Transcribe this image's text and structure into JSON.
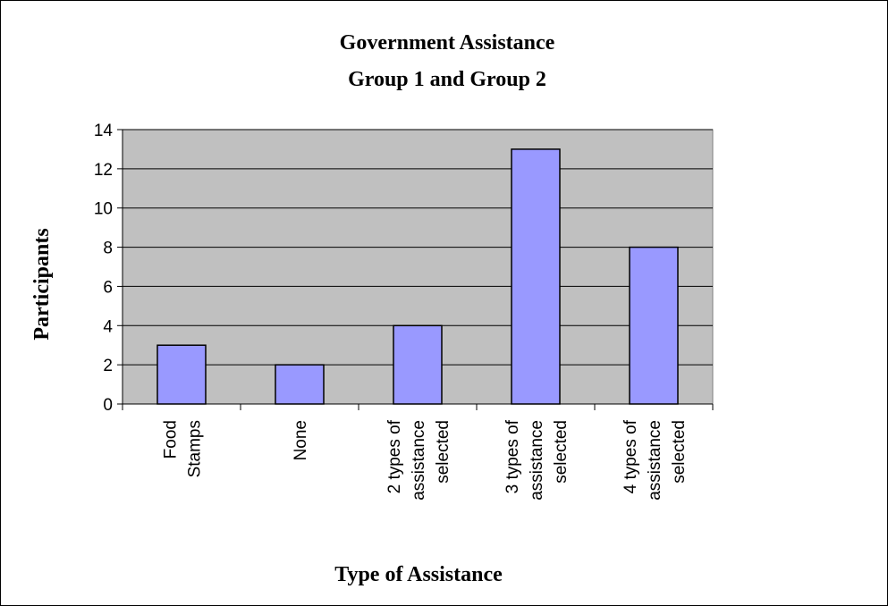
{
  "chart_data": {
    "type": "bar",
    "title": [
      "Government Assistance",
      "Group 1 and Group 2"
    ],
    "xlabel": "Type of Assistance",
    "ylabel": "Participants",
    "ylim": [
      0,
      14
    ],
    "yticks": [
      0,
      2,
      4,
      6,
      8,
      10,
      12,
      14
    ],
    "grid": true,
    "legend": "none",
    "categories": [
      [
        "Food",
        "Stamps"
      ],
      [
        "None"
      ],
      [
        "2 types of",
        "assistance",
        "selected"
      ],
      [
        "3 types of",
        "assistance",
        "selected"
      ],
      [
        "4 types of",
        "assistance",
        "selected"
      ]
    ],
    "values": [
      3,
      2,
      4,
      13,
      8
    ],
    "colors": {
      "bar_fill": "#9999ff",
      "plot_background": "#c0c0c0",
      "gridline": "#000000",
      "border": "#000000"
    }
  }
}
